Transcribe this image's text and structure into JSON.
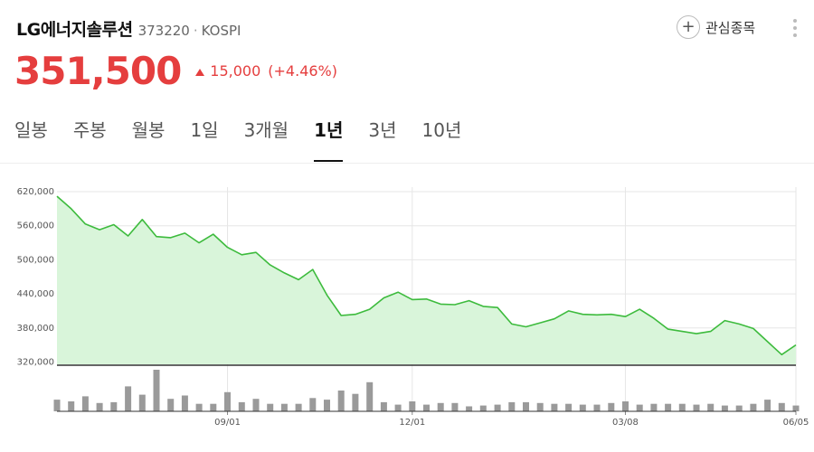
{
  "stock": {
    "name": "LG에너지솔루션",
    "code": "373220",
    "dot": "·",
    "market": "KOSPI",
    "price": "351,500",
    "change": "15,000",
    "change_pct": "(+4.46%)"
  },
  "watch": {
    "icon": "plus-icon",
    "label": "관심종목"
  },
  "tabs": [
    {
      "label": "일봉",
      "active": false
    },
    {
      "label": "주봉",
      "active": false
    },
    {
      "label": "월봉",
      "active": false
    },
    {
      "label": "1일",
      "active": false
    },
    {
      "label": "3개월",
      "active": false
    },
    {
      "label": "1년",
      "active": true
    },
    {
      "label": "3년",
      "active": false
    },
    {
      "label": "10년",
      "active": false
    }
  ],
  "colors": {
    "up": "#e53e3e",
    "line": "#3dbb3d",
    "fill": "#d9f5da",
    "volume": "#9a9a9a"
  },
  "chart_data": {
    "type": "area",
    "ylim": [
      316000,
      628000
    ],
    "yticks": [
      320000,
      380000,
      440000,
      500000,
      560000,
      620000
    ],
    "ytick_labels": [
      "320,000",
      "380,000",
      "440,000",
      "500,000",
      "560,000",
      "620,000"
    ],
    "xticks": [
      {
        "label": "09/01",
        "index": 12
      },
      {
        "label": "12/01",
        "index": 25
      },
      {
        "label": "03/08",
        "index": 40
      },
      {
        "label": "06/05",
        "index": 52
      }
    ],
    "price": [
      612000,
      590000,
      563000,
      553000,
      562000,
      542000,
      571000,
      541000,
      539000,
      547000,
      530000,
      545000,
      522000,
      509000,
      513000,
      491000,
      477000,
      465000,
      483000,
      438000,
      402000,
      404000,
      413000,
      433000,
      443000,
      430000,
      431000,
      422000,
      421000,
      428000,
      418000,
      416000,
      387000,
      382000,
      389000,
      396000,
      410000,
      404000,
      403000,
      404000,
      400000,
      413000,
      397000,
      378000,
      374000,
      370000,
      374000,
      393000,
      387000,
      379000,
      356000,
      333000,
      350000
    ],
    "volume": [
      14,
      12,
      18,
      10,
      11,
      30,
      20,
      50,
      15,
      19,
      9,
      9,
      23,
      11,
      15,
      9,
      9,
      9,
      16,
      14,
      25,
      21,
      35,
      11,
      8,
      12,
      8,
      10,
      10,
      6,
      7,
      8,
      11,
      11,
      10,
      9,
      9,
      8,
      8,
      10,
      12,
      8,
      9,
      9,
      9,
      8,
      9,
      7,
      7,
      9,
      14,
      10,
      7
    ],
    "volume_max": 50
  }
}
